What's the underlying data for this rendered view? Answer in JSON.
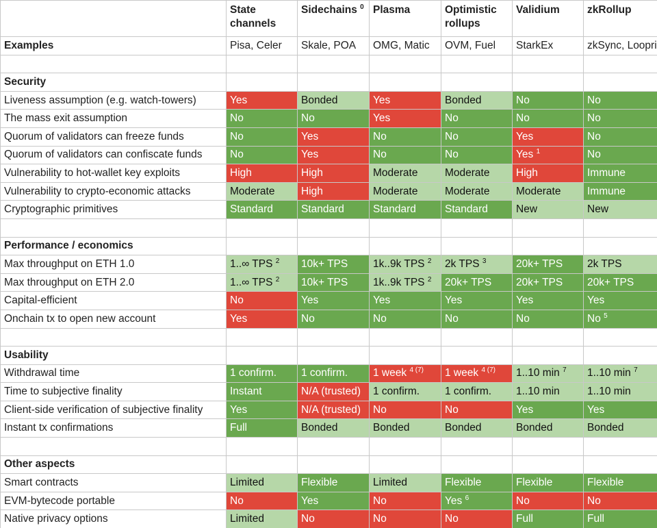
{
  "columns": [
    {
      "label": "State channels"
    },
    {
      "label": "Sidechains",
      "sup": "0"
    },
    {
      "label": "Plasma"
    },
    {
      "label": "Optimistic rollups"
    },
    {
      "label": "Validium"
    },
    {
      "label": "zkRollup"
    }
  ],
  "examples": {
    "label": "Examples",
    "values": [
      "Pisa, Celer",
      "Skale, POA",
      "OMG, Matic",
      "OVM, Fuel",
      "StarkEx",
      "zkSync, Loopring"
    ]
  },
  "sections": [
    {
      "title": "Security",
      "rows": [
        {
          "label": "Liveness assumption (e.g. watch-towers)",
          "cells": [
            {
              "text": "Yes",
              "color": "r"
            },
            {
              "text": "Bonded",
              "color": "l"
            },
            {
              "text": "Yes",
              "color": "r"
            },
            {
              "text": "Bonded",
              "color": "l"
            },
            {
              "text": "No",
              "color": "g"
            },
            {
              "text": "No",
              "color": "g"
            }
          ]
        },
        {
          "label": "The mass exit assumption",
          "cells": [
            {
              "text": "No",
              "color": "g"
            },
            {
              "text": "No",
              "color": "g"
            },
            {
              "text": "Yes",
              "color": "r"
            },
            {
              "text": "No",
              "color": "g"
            },
            {
              "text": "No",
              "color": "g"
            },
            {
              "text": "No",
              "color": "g"
            }
          ]
        },
        {
          "label": "Quorum of validators can freeze funds",
          "cells": [
            {
              "text": "No",
              "color": "g"
            },
            {
              "text": "Yes",
              "color": "r"
            },
            {
              "text": "No",
              "color": "g"
            },
            {
              "text": "No",
              "color": "g"
            },
            {
              "text": "Yes",
              "color": "r"
            },
            {
              "text": "No",
              "color": "g"
            }
          ]
        },
        {
          "label": "Quorum of validators can confiscate funds",
          "cells": [
            {
              "text": "No",
              "color": "g"
            },
            {
              "text": "Yes",
              "color": "r"
            },
            {
              "text": "No",
              "color": "g"
            },
            {
              "text": "No",
              "color": "g"
            },
            {
              "text": "Yes",
              "sup": "1",
              "color": "r"
            },
            {
              "text": "No",
              "color": "g"
            }
          ]
        },
        {
          "label": "Vulnerability to hot-wallet key exploits",
          "cells": [
            {
              "text": "High",
              "color": "r"
            },
            {
              "text": "High",
              "color": "r"
            },
            {
              "text": "Moderate",
              "color": "l"
            },
            {
              "text": "Moderate",
              "color": "l"
            },
            {
              "text": "High",
              "color": "r"
            },
            {
              "text": "Immune",
              "color": "g"
            }
          ]
        },
        {
          "label": "Vulnerability to crypto-economic attacks",
          "cells": [
            {
              "text": "Moderate",
              "color": "l"
            },
            {
              "text": "High",
              "color": "r"
            },
            {
              "text": "Moderate",
              "color": "l"
            },
            {
              "text": "Moderate",
              "color": "l"
            },
            {
              "text": "Moderate",
              "color": "l"
            },
            {
              "text": "Immune",
              "color": "g"
            }
          ]
        },
        {
          "label": "Cryptographic primitives",
          "cells": [
            {
              "text": "Standard",
              "color": "g"
            },
            {
              "text": "Standard",
              "color": "g"
            },
            {
              "text": "Standard",
              "color": "g"
            },
            {
              "text": "Standard",
              "color": "g"
            },
            {
              "text": "New",
              "color": "l"
            },
            {
              "text": "New",
              "color": "l"
            }
          ]
        }
      ]
    },
    {
      "title": "Performance / economics",
      "rows": [
        {
          "label": "Max throughput on ETH 1.0",
          "cells": [
            {
              "text": "1..∞ TPS",
              "sup": "2",
              "color": "l"
            },
            {
              "text": "10k+ TPS",
              "color": "g"
            },
            {
              "text": "1k..9k TPS",
              "sup": "2",
              "color": "l"
            },
            {
              "text": "2k TPS",
              "sup": "3",
              "color": "l"
            },
            {
              "text": "20k+ TPS",
              "color": "g"
            },
            {
              "text": "2k TPS",
              "color": "l"
            }
          ]
        },
        {
          "label": "Max throughput on ETH 2.0",
          "cells": [
            {
              "text": "1..∞ TPS",
              "sup": "2",
              "color": "l"
            },
            {
              "text": "10k+ TPS",
              "color": "g"
            },
            {
              "text": "1k..9k TPS",
              "sup": "2",
              "color": "l"
            },
            {
              "text": "20k+ TPS",
              "color": "g"
            },
            {
              "text": "20k+ TPS",
              "color": "g"
            },
            {
              "text": "20k+ TPS",
              "color": "g"
            }
          ]
        },
        {
          "label": "Capital-efficient",
          "cells": [
            {
              "text": "No",
              "color": "r"
            },
            {
              "text": "Yes",
              "color": "g"
            },
            {
              "text": "Yes",
              "color": "g"
            },
            {
              "text": "Yes",
              "color": "g"
            },
            {
              "text": "Yes",
              "color": "g"
            },
            {
              "text": "Yes",
              "color": "g"
            }
          ]
        },
        {
          "label": "Onchain tx to open new account",
          "cells": [
            {
              "text": "Yes",
              "color": "r"
            },
            {
              "text": "No",
              "color": "g"
            },
            {
              "text": "No",
              "color": "g"
            },
            {
              "text": "No",
              "color": "g"
            },
            {
              "text": "No",
              "color": "g"
            },
            {
              "text": "No",
              "sup": "5",
              "color": "g"
            }
          ]
        }
      ]
    },
    {
      "title": "Usability",
      "rows": [
        {
          "label": "Withdrawal time",
          "cells": [
            {
              "text": "1 confirm.",
              "color": "g"
            },
            {
              "text": "1 confirm.",
              "color": "g"
            },
            {
              "text": "1 week",
              "sup": "4 (7)",
              "color": "r"
            },
            {
              "text": "1 week",
              "sup": "4 (7)",
              "color": "r"
            },
            {
              "text": "1..10 min",
              "sup": "7",
              "color": "l"
            },
            {
              "text": "1..10 min",
              "sup": "7",
              "color": "l"
            }
          ]
        },
        {
          "label": "Time to subjective finality",
          "cells": [
            {
              "text": "Instant",
              "color": "g"
            },
            {
              "text": "N/A (trusted)",
              "color": "r"
            },
            {
              "text": "1 confirm.",
              "color": "l"
            },
            {
              "text": "1 confirm.",
              "color": "l"
            },
            {
              "text": "1..10 min",
              "color": "l"
            },
            {
              "text": "1..10 min",
              "color": "l"
            }
          ]
        },
        {
          "label": "Client-side verification of subjective finality",
          "cells": [
            {
              "text": "Yes",
              "color": "g"
            },
            {
              "text": "N/A (trusted)",
              "color": "r"
            },
            {
              "text": "No",
              "color": "r"
            },
            {
              "text": "No",
              "color": "r"
            },
            {
              "text": "Yes",
              "color": "g"
            },
            {
              "text": "Yes",
              "color": "g"
            }
          ]
        },
        {
          "label": "Instant tx confirmations",
          "cells": [
            {
              "text": "Full",
              "color": "g"
            },
            {
              "text": "Bonded",
              "color": "l"
            },
            {
              "text": "Bonded",
              "color": "l"
            },
            {
              "text": "Bonded",
              "color": "l"
            },
            {
              "text": "Bonded",
              "color": "l"
            },
            {
              "text": "Bonded",
              "color": "l"
            }
          ]
        }
      ]
    },
    {
      "title": "Other aspects",
      "rows": [
        {
          "label": "Smart contracts",
          "cells": [
            {
              "text": "Limited",
              "color": "l"
            },
            {
              "text": "Flexible",
              "color": "g"
            },
            {
              "text": "Limited",
              "color": "l"
            },
            {
              "text": "Flexible",
              "color": "g"
            },
            {
              "text": "Flexible",
              "color": "g"
            },
            {
              "text": "Flexible",
              "color": "g"
            }
          ]
        },
        {
          "label": "EVM-bytecode portable",
          "cells": [
            {
              "text": "No",
              "color": "r"
            },
            {
              "text": "Yes",
              "color": "g"
            },
            {
              "text": "No",
              "color": "r"
            },
            {
              "text": "Yes",
              "sup": "6",
              "color": "g"
            },
            {
              "text": "No",
              "color": "r"
            },
            {
              "text": "No",
              "color": "r"
            }
          ]
        },
        {
          "label": "Native privacy options",
          "cells": [
            {
              "text": "Limited",
              "color": "l"
            },
            {
              "text": "No",
              "color": "r"
            },
            {
              "text": "No",
              "color": "r"
            },
            {
              "text": "No",
              "color": "r"
            },
            {
              "text": "Full",
              "color": "g"
            },
            {
              "text": "Full",
              "color": "g"
            }
          ]
        }
      ]
    }
  ],
  "colors": {
    "g": "#6aa84f",
    "l": "#b6d7a8",
    "r": "#e0473a"
  }
}
